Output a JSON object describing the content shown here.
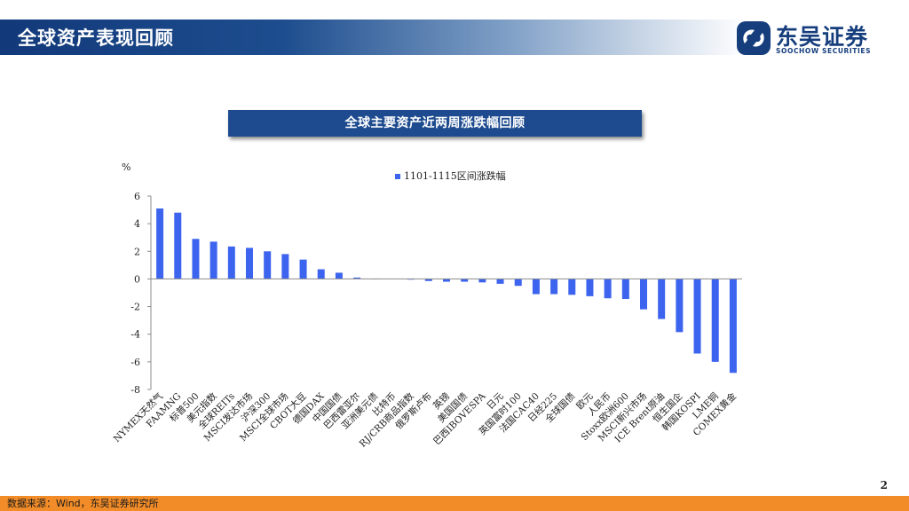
{
  "header": {
    "title": "全球资产表现回顾"
  },
  "logo": {
    "name_cn": "东吴证券",
    "name_en": "SOOCHOW SECURITIES"
  },
  "chart_title": "全球主要资产近两周涨跌幅回顾",
  "page_number": "2",
  "footer": {
    "source": "数据来源：Wind，东吴证券研究所"
  },
  "colors": {
    "bar": "#3c64ee",
    "header_dark": "#12397a",
    "footer": "#f28c28"
  },
  "chart_data": {
    "type": "bar",
    "title": "",
    "xlabel": "",
    "ylabel": "%",
    "ylim": [
      -8,
      6
    ],
    "yticks": [
      6,
      4,
      2,
      0,
      -2,
      -4,
      -6,
      -8
    ],
    "legend_position": "top",
    "grid": false,
    "series": [
      {
        "name": "1101-1115区间涨跌幅",
        "values": [
          5.1,
          4.8,
          2.9,
          2.7,
          2.35,
          2.25,
          2.0,
          1.8,
          1.4,
          0.7,
          0.45,
          0.1,
          0.02,
          0.0,
          -0.05,
          -0.15,
          -0.2,
          -0.2,
          -0.25,
          -0.35,
          -0.5,
          -1.1,
          -1.1,
          -1.15,
          -1.25,
          -1.4,
          -1.45,
          -2.2,
          -2.9,
          -3.85,
          -5.4,
          -6.0,
          -6.8
        ]
      }
    ],
    "categories": [
      "NYMEX天然气",
      "FAAMNG",
      "标普500",
      "美元指数",
      "全球REITs",
      "MSCI发达市场",
      "沪深300",
      "MSCI全球市场",
      "CBOT大豆",
      "德国DAX",
      "中国国债",
      "巴西雷亚尔",
      "亚洲美元债",
      "比特币",
      "RJ/CRB商品指数",
      "俄罗斯卢布",
      "英镑",
      "美国国债",
      "巴西IBOVESPA",
      "日元",
      "英国富时100",
      "法国CAC40",
      "日经225",
      "全球国债",
      "欧元",
      "人民币",
      "Stoxx欧洲600",
      "MSCI新兴市场",
      "ICE Brent原油",
      "恒生国企",
      "韩国KOSPI",
      "LME铜",
      "COMEX黄金"
    ]
  }
}
